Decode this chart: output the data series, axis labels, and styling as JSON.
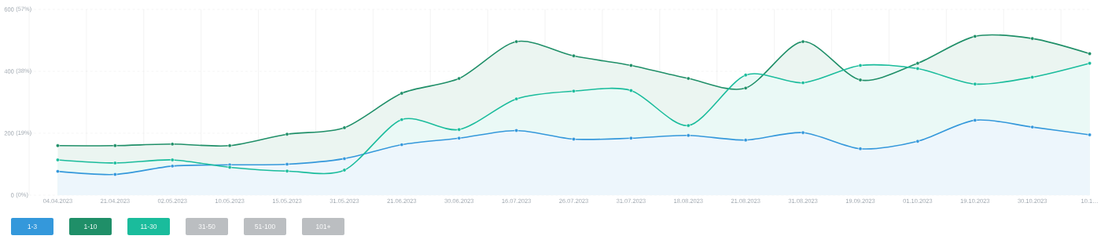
{
  "chart_data": {
    "type": "area",
    "categories": [
      "04.04.2023",
      "21.04.2023",
      "02.05.2023",
      "10.05.2023",
      "15.05.2023",
      "31.05.2023",
      "21.06.2023",
      "30.06.2023",
      "16.07.2023",
      "26.07.2023",
      "31.07.2023",
      "18.08.2023",
      "21.08.2023",
      "31.08.2023",
      "19.09.2023",
      "01.10.2023",
      "19.10.2023",
      "30.10.2023",
      "10.1…"
    ],
    "series": [
      {
        "name": "1-3",
        "color": "#3498db",
        "values": [
          77,
          67,
          94,
          98,
          100,
          118,
          163,
          184,
          209,
          181,
          184,
          193,
          178,
          202,
          150,
          174,
          242,
          220,
          195
        ]
      },
      {
        "name": "1-10",
        "color": "#1f8f68",
        "values": [
          160,
          160,
          165,
          160,
          197,
          218,
          329,
          377,
          496,
          450,
          419,
          377,
          346,
          496,
          372,
          426,
          513,
          506,
          457
        ]
      },
      {
        "name": "11-30",
        "color": "#1abc9c",
        "values": [
          114,
          104,
          114,
          90,
          78,
          81,
          244,
          212,
          311,
          336,
          338,
          225,
          388,
          363,
          419,
          409,
          359,
          381,
          426
        ]
      }
    ],
    "annotations": [
      "31-50",
      "51-100",
      "101+"
    ],
    "ylim": [
      0,
      600
    ],
    "yticks": [
      0,
      200,
      400,
      600
    ],
    "y2lim": [
      0,
      57
    ],
    "y2ticks": [
      {
        "value": 0,
        "label": "(0%)"
      },
      {
        "value": 19,
        "label": "(19%)"
      },
      {
        "value": 38,
        "label": "(38%)"
      },
      {
        "value": 57,
        "label": "(57%)"
      }
    ],
    "grid": true,
    "legend": "bottom left",
    "marker": "circle"
  }
}
